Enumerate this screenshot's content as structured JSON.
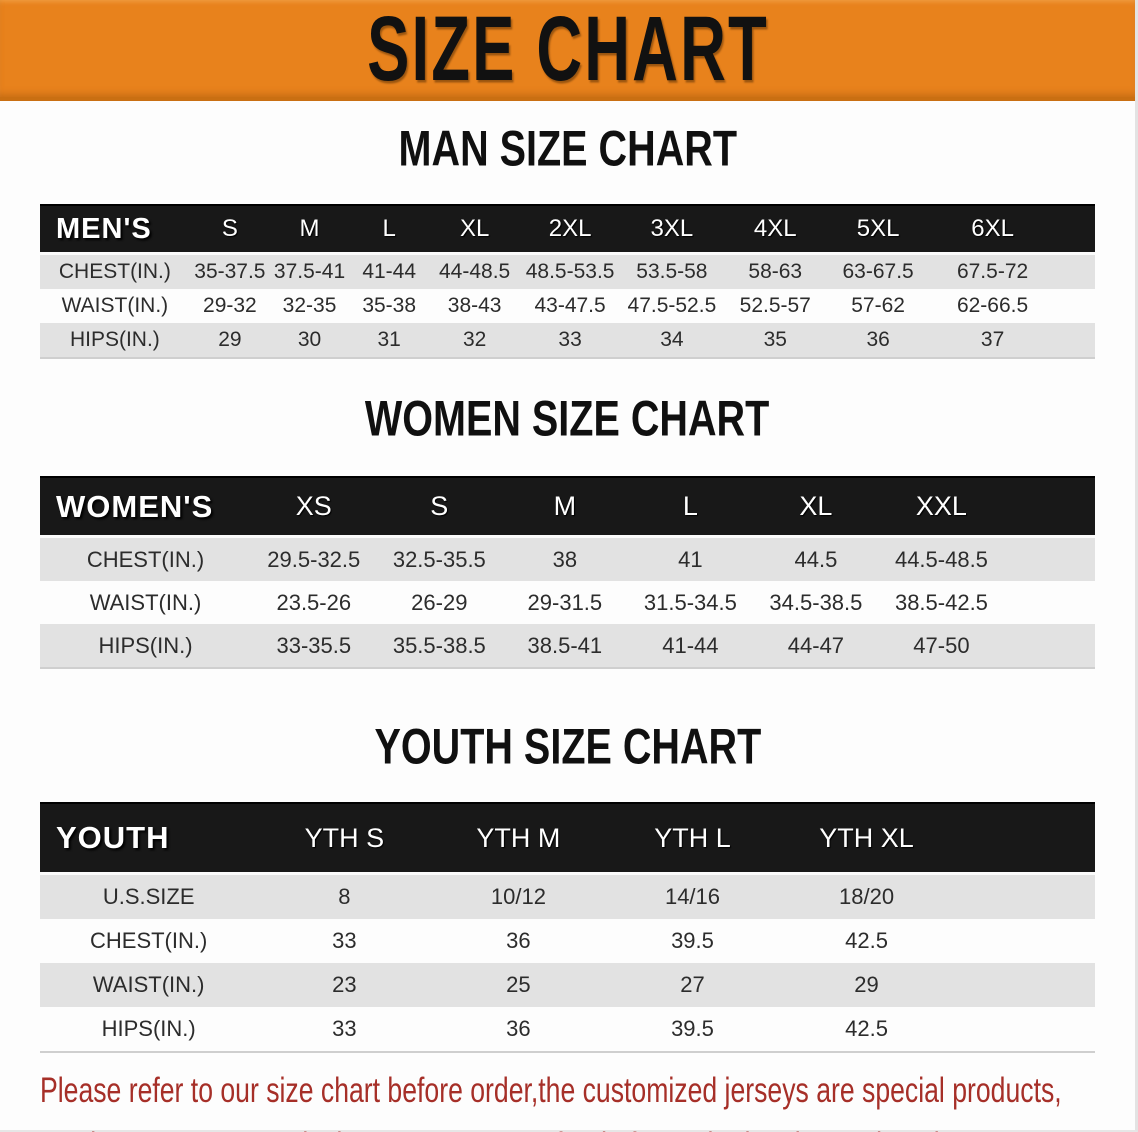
{
  "colors": {
    "banner_bg": "#e8821c",
    "banner_text": "#111111",
    "header_bar_bg": "#181818",
    "row_alt_bg": "#e2e2e2",
    "notice_text": "#a62f28"
  },
  "banner": {
    "title": "SIZE CHART"
  },
  "sections": [
    {
      "heading": "MAN SIZE CHART",
      "header_label": "MEN'S",
      "sizes": [
        "S",
        "M",
        "L",
        "XL",
        "2XL",
        "3XL",
        "4XL",
        "5XL",
        "6XL"
      ],
      "rows": [
        {
          "label": "CHEST(IN.)",
          "values": [
            "35-37.5",
            "37.5-41",
            "41-44",
            "44-48.5",
            "48.5-53.5",
            "53.5-58",
            "58-63",
            "63-67.5",
            "67.5-72"
          ]
        },
        {
          "label": "WAIST(IN.)",
          "values": [
            "29-32",
            "32-35",
            "35-38",
            "38-43",
            "43-47.5",
            "47.5-52.5",
            "52.5-57",
            "57-62",
            "62-66.5"
          ]
        },
        {
          "label": "HIPS(IN.)",
          "values": [
            "29",
            "30",
            "31",
            "32",
            "33",
            "34",
            "35",
            "36",
            "37"
          ]
        }
      ]
    },
    {
      "heading": "WOMEN SIZE CHART",
      "header_label": "WOMEN'S",
      "sizes": [
        "XS",
        "S",
        "M",
        "L",
        "XL",
        "XXL"
      ],
      "rows": [
        {
          "label": "CHEST(IN.)",
          "values": [
            "29.5-32.5",
            "32.5-35.5",
            "38",
            "41",
            "44.5",
            "44.5-48.5"
          ]
        },
        {
          "label": "WAIST(IN.)",
          "values": [
            "23.5-26",
            "26-29",
            "29-31.5",
            "31.5-34.5",
            "34.5-38.5",
            "38.5-42.5"
          ]
        },
        {
          "label": "HIPS(IN.)",
          "values": [
            "33-35.5",
            "35.5-38.5",
            "38.5-41",
            "41-44",
            "44-47",
            "47-50"
          ]
        }
      ]
    },
    {
      "heading": "YOUTH SIZE CHART",
      "header_label": "YOUTH",
      "sizes": [
        "YTH S",
        "YTH M",
        "YTH L",
        "YTH XL"
      ],
      "rows": [
        {
          "label": "U.S.SIZE",
          "values": [
            "8",
            "10/12",
            "14/16",
            "18/20"
          ]
        },
        {
          "label": "CHEST(IN.)",
          "values": [
            "33",
            "36",
            "39.5",
            "42.5"
          ]
        },
        {
          "label": "WAIST(IN.)",
          "values": [
            "23",
            "25",
            "27",
            "29"
          ]
        },
        {
          "label": "HIPS(IN.)",
          "values": [
            "33",
            "36",
            "39.5",
            "42.5"
          ]
        }
      ]
    }
  ],
  "footer": {
    "line1": "Please refer to our size chart before order,the customized jerseys are special products,",
    "line2": "we don't accept cancel, change, teturn or refund after order has been placed!"
  }
}
